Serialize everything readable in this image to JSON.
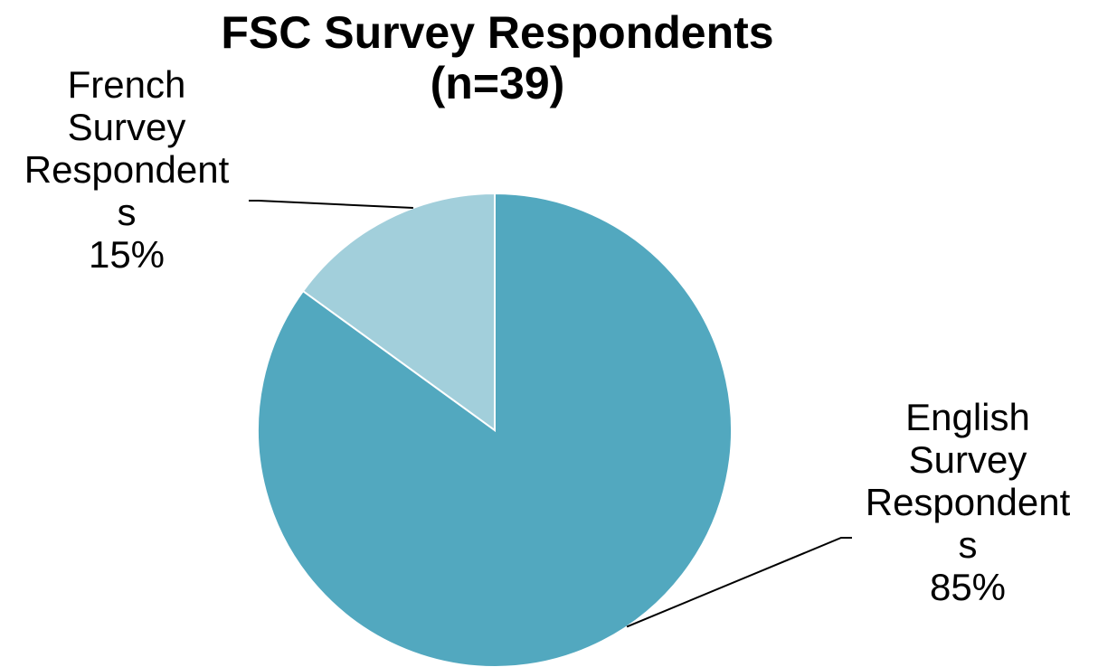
{
  "chart_data": {
    "type": "pie",
    "title": "FSC Survey Respondents\n(n=39)",
    "slices": [
      {
        "label_lines": [
          "English",
          "Survey",
          "Respondent",
          "s"
        ],
        "value": 85,
        "value_label": "85%",
        "color": "#52a8bf"
      },
      {
        "label_lines": [
          "French",
          "Survey",
          "Respondent",
          "s"
        ],
        "value": 15,
        "value_label": "15%",
        "color": "#a2cfdb"
      }
    ],
    "start_angle_deg": 0,
    "direction": "clockwise",
    "legend": "none"
  }
}
